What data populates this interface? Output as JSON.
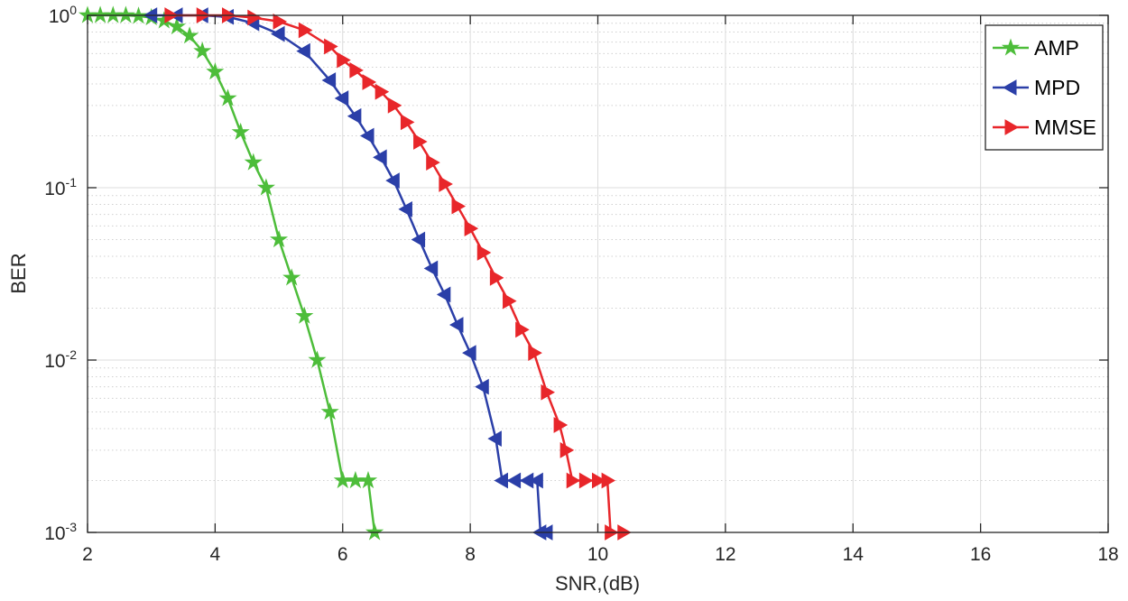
{
  "chart_data": {
    "type": "line",
    "title": "",
    "xlabel": "SNR,(dB)",
    "ylabel": "BER",
    "xlim": [
      2,
      18
    ],
    "ylim": [
      0.001,
      1
    ],
    "yscale": "log",
    "grid": true,
    "minor_grid": true,
    "legend_position": "top-right",
    "x_ticks": [
      "2",
      "4",
      "6",
      "8",
      "10",
      "12",
      "14",
      "16",
      "18"
    ],
    "y_ticks": [
      {
        "base": "10",
        "exp": "0"
      },
      {
        "base": "10",
        "exp": "-1"
      },
      {
        "base": "10",
        "exp": "-2"
      },
      {
        "base": "10",
        "exp": "-3"
      }
    ],
    "series": [
      {
        "name": "AMP",
        "color": "#4dbd3a",
        "marker": "star",
        "x": [
          2.0,
          2.2,
          2.4,
          2.6,
          2.8,
          3.0,
          3.2,
          3.4,
          3.6,
          3.8,
          4.0,
          4.2,
          4.4,
          4.6,
          4.8,
          5.0,
          5.2,
          5.4,
          5.6,
          5.8,
          6.0,
          6.2,
          6.4,
          6.5
        ],
        "y": [
          1,
          1,
          1,
          1,
          0.99,
          0.97,
          0.93,
          0.86,
          0.76,
          0.62,
          0.47,
          0.33,
          0.21,
          0.14,
          0.1,
          0.05,
          0.03,
          0.018,
          0.01,
          0.005,
          0.002,
          0.002,
          0.002,
          0.001
        ]
      },
      {
        "name": "MPD",
        "color": "#2b3fa8",
        "marker": "triangle-left",
        "x": [
          3.0,
          3.4,
          3.8,
          4.2,
          4.6,
          5.0,
          5.4,
          5.8,
          6.0,
          6.2,
          6.4,
          6.6,
          6.8,
          7.0,
          7.2,
          7.4,
          7.6,
          7.8,
          8.0,
          8.2,
          8.4,
          8.5,
          8.7,
          8.9,
          9.05,
          9.1,
          9.2
        ],
        "y": [
          1,
          1,
          1,
          0.98,
          0.9,
          0.78,
          0.62,
          0.42,
          0.33,
          0.26,
          0.2,
          0.15,
          0.11,
          0.075,
          0.05,
          0.034,
          0.024,
          0.016,
          0.011,
          0.007,
          0.0035,
          0.002,
          0.002,
          0.002,
          0.002,
          0.001,
          0.001
        ]
      },
      {
        "name": "MMSE",
        "color": "#e8262a",
        "marker": "triangle-right",
        "x": [
          3.3,
          3.8,
          4.2,
          4.6,
          5.0,
          5.4,
          5.8,
          6.0,
          6.2,
          6.4,
          6.6,
          6.8,
          7.0,
          7.2,
          7.4,
          7.6,
          7.8,
          8.0,
          8.2,
          8.4,
          8.6,
          8.8,
          9.0,
          9.2,
          9.4,
          9.5,
          9.6,
          9.8,
          10.0,
          10.15,
          10.2,
          10.4
        ],
        "y": [
          1,
          1,
          1,
          0.97,
          0.92,
          0.82,
          0.66,
          0.55,
          0.48,
          0.41,
          0.36,
          0.3,
          0.24,
          0.185,
          0.14,
          0.105,
          0.078,
          0.058,
          0.042,
          0.03,
          0.022,
          0.015,
          0.011,
          0.0065,
          0.0042,
          0.003,
          0.002,
          0.002,
          0.002,
          0.002,
          0.001,
          0.001
        ]
      }
    ]
  }
}
